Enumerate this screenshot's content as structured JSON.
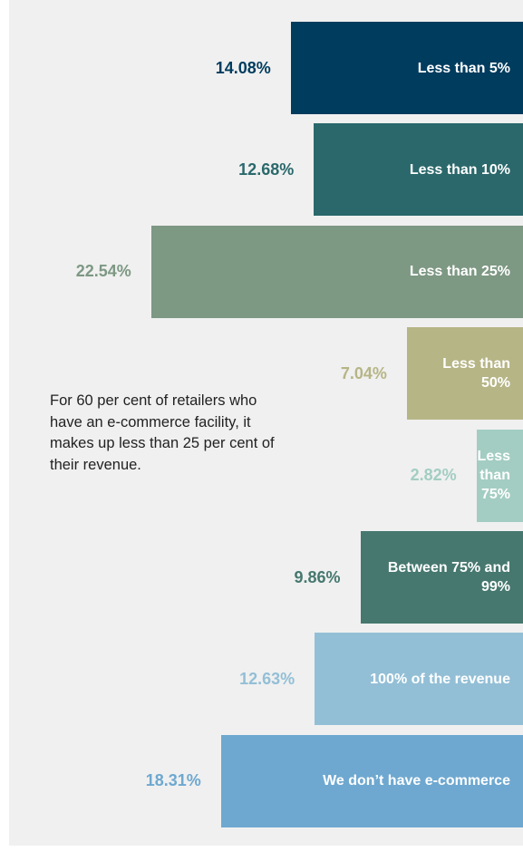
{
  "chart_data": {
    "type": "bar",
    "orientation": "horizontal",
    "categories": [
      "Less than 5%",
      "Less than 10%",
      "Less than 25%",
      "Less than 50%",
      "Less than 75%",
      "Between 75% and 99%",
      "100% of the revenue",
      "We don’t have e-commerce"
    ],
    "values": [
      14.08,
      12.68,
      22.54,
      7.04,
      2.82,
      9.86,
      12.63,
      18.31
    ],
    "value_labels": [
      "14.08%",
      "12.68%",
      "22.54%",
      "7.04%",
      "2.82%",
      "9.86%",
      "12.63%",
      "18.31%"
    ],
    "colors": [
      "#003c5e",
      "#2a686b",
      "#7d9883",
      "#b6b586",
      "#a3cdc2",
      "#46786f",
      "#93bfd6",
      "#6ea8d0"
    ],
    "annotation": "For 60 per cent of retailers who have an e-commerce facility, it makes up less than 25 per cent of their revenue."
  }
}
